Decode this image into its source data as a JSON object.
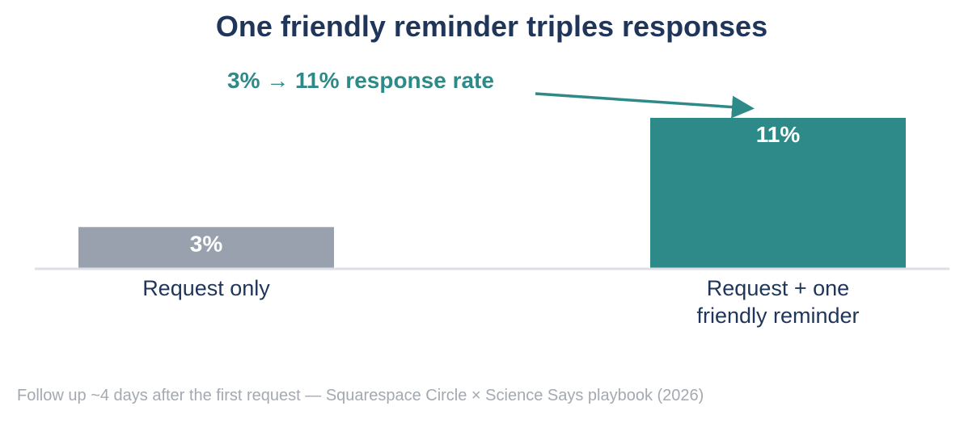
{
  "chart_data": {
    "type": "bar",
    "title": "One friendly reminder triples responses",
    "categories": [
      "Request only",
      "Request + one friendly reminder"
    ],
    "category_lines": [
      [
        "Request only"
      ],
      [
        "Request + one",
        "friendly reminder"
      ]
    ],
    "values": [
      3,
      11
    ],
    "value_labels": [
      "3%",
      "11%"
    ],
    "bar_colors": [
      "#9aa1ae",
      "#2e8a88"
    ],
    "ylim": [
      0,
      11
    ],
    "xlabel": "",
    "ylabel": "",
    "grid": false,
    "annotation": "3% → 11% response rate",
    "footnote": "Follow up ~4 days after the first request — Squarespace Circle × Science Says playbook (2026)"
  },
  "colors": {
    "title": "#1f3559",
    "accent": "#2e8a88",
    "muted_bar": "#9aa1ae",
    "baseline": "#dcdfe5",
    "footnote": "#a4a9b1",
    "category_text": "#1f3559",
    "value_text": "#ffffff"
  }
}
